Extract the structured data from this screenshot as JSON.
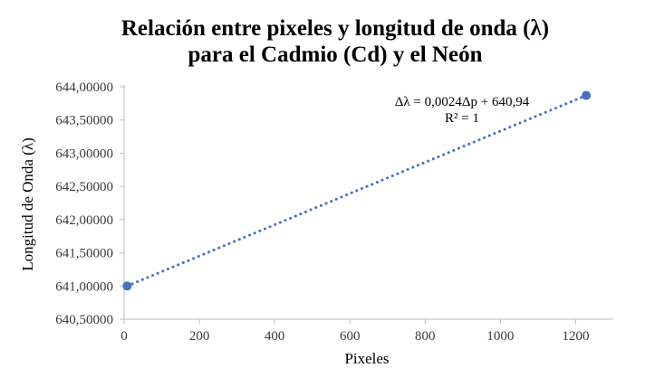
{
  "chart_data": {
    "type": "scatter",
    "title_lines": [
      "Relación entre pixeles y longitud de onda (λ)",
      "para el Cadmio (Cd) y el Neón"
    ],
    "xlabel": "Pixeles",
    "ylabel": "Longitud de Onda (λ)",
    "xlim": [
      0,
      1300
    ],
    "ylim": [
      640.5,
      644.0
    ],
    "x_ticks": [
      0,
      200,
      400,
      600,
      800,
      1000,
      1200
    ],
    "x_tick_labels": [
      "0",
      "200",
      "400",
      "600",
      "800",
      "1000",
      "1200"
    ],
    "y_ticks": [
      640.5,
      641.0,
      641.5,
      642.0,
      642.5,
      643.0,
      643.5,
      644.0
    ],
    "y_tick_labels": [
      "640,50000",
      "641,00000",
      "641,50000",
      "642,00000",
      "642,50000",
      "643,00000",
      "643,50000",
      "644,00000"
    ],
    "grid": false,
    "legend": "none",
    "series": [
      {
        "points": [
          {
            "x": 8,
            "y": 641.0
          },
          {
            "x": 1228,
            "y": 643.87
          }
        ],
        "color": "#4472C4"
      }
    ],
    "trendline": {
      "type": "linear",
      "style": "dotted",
      "color": "#4472C4",
      "x_range": [
        8,
        1228
      ],
      "slope": 0.0024,
      "intercept": 640.94
    },
    "annotations": {
      "equation": "Δλ = 0,0024Δp + 640,94",
      "r_squared": "R² = 1"
    }
  }
}
